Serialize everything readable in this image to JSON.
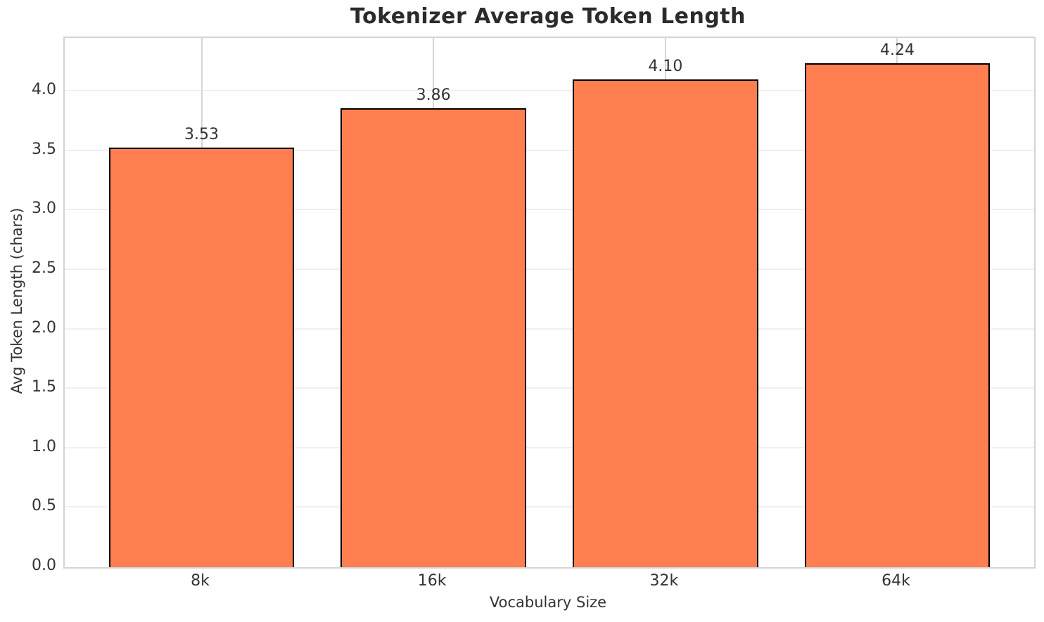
{
  "chart_data": {
    "type": "bar",
    "title": "Tokenizer Average Token Length",
    "xlabel": "Vocabulary Size",
    "ylabel": "Avg Token Length (chars)",
    "categories": [
      "8k",
      "16k",
      "32k",
      "64k"
    ],
    "values": [
      3.53,
      3.86,
      4.1,
      4.24
    ],
    "value_labels": [
      "3.53",
      "3.86",
      "4.10",
      "4.24"
    ],
    "yticks": [
      0.0,
      0.5,
      1.0,
      1.5,
      2.0,
      2.5,
      3.0,
      3.5,
      4.0
    ],
    "ytick_labels": [
      "0.0",
      "0.5",
      "1.0",
      "1.5",
      "2.0",
      "2.5",
      "3.0",
      "3.5",
      "4.0"
    ],
    "ylim": [
      0,
      4.45
    ],
    "xlim": [
      -0.59,
      3.59
    ],
    "bar_width": 0.8,
    "grid": "both",
    "legend": "none",
    "bar_color": "#FF7F50",
    "bar_edge_color": "#000000"
  }
}
